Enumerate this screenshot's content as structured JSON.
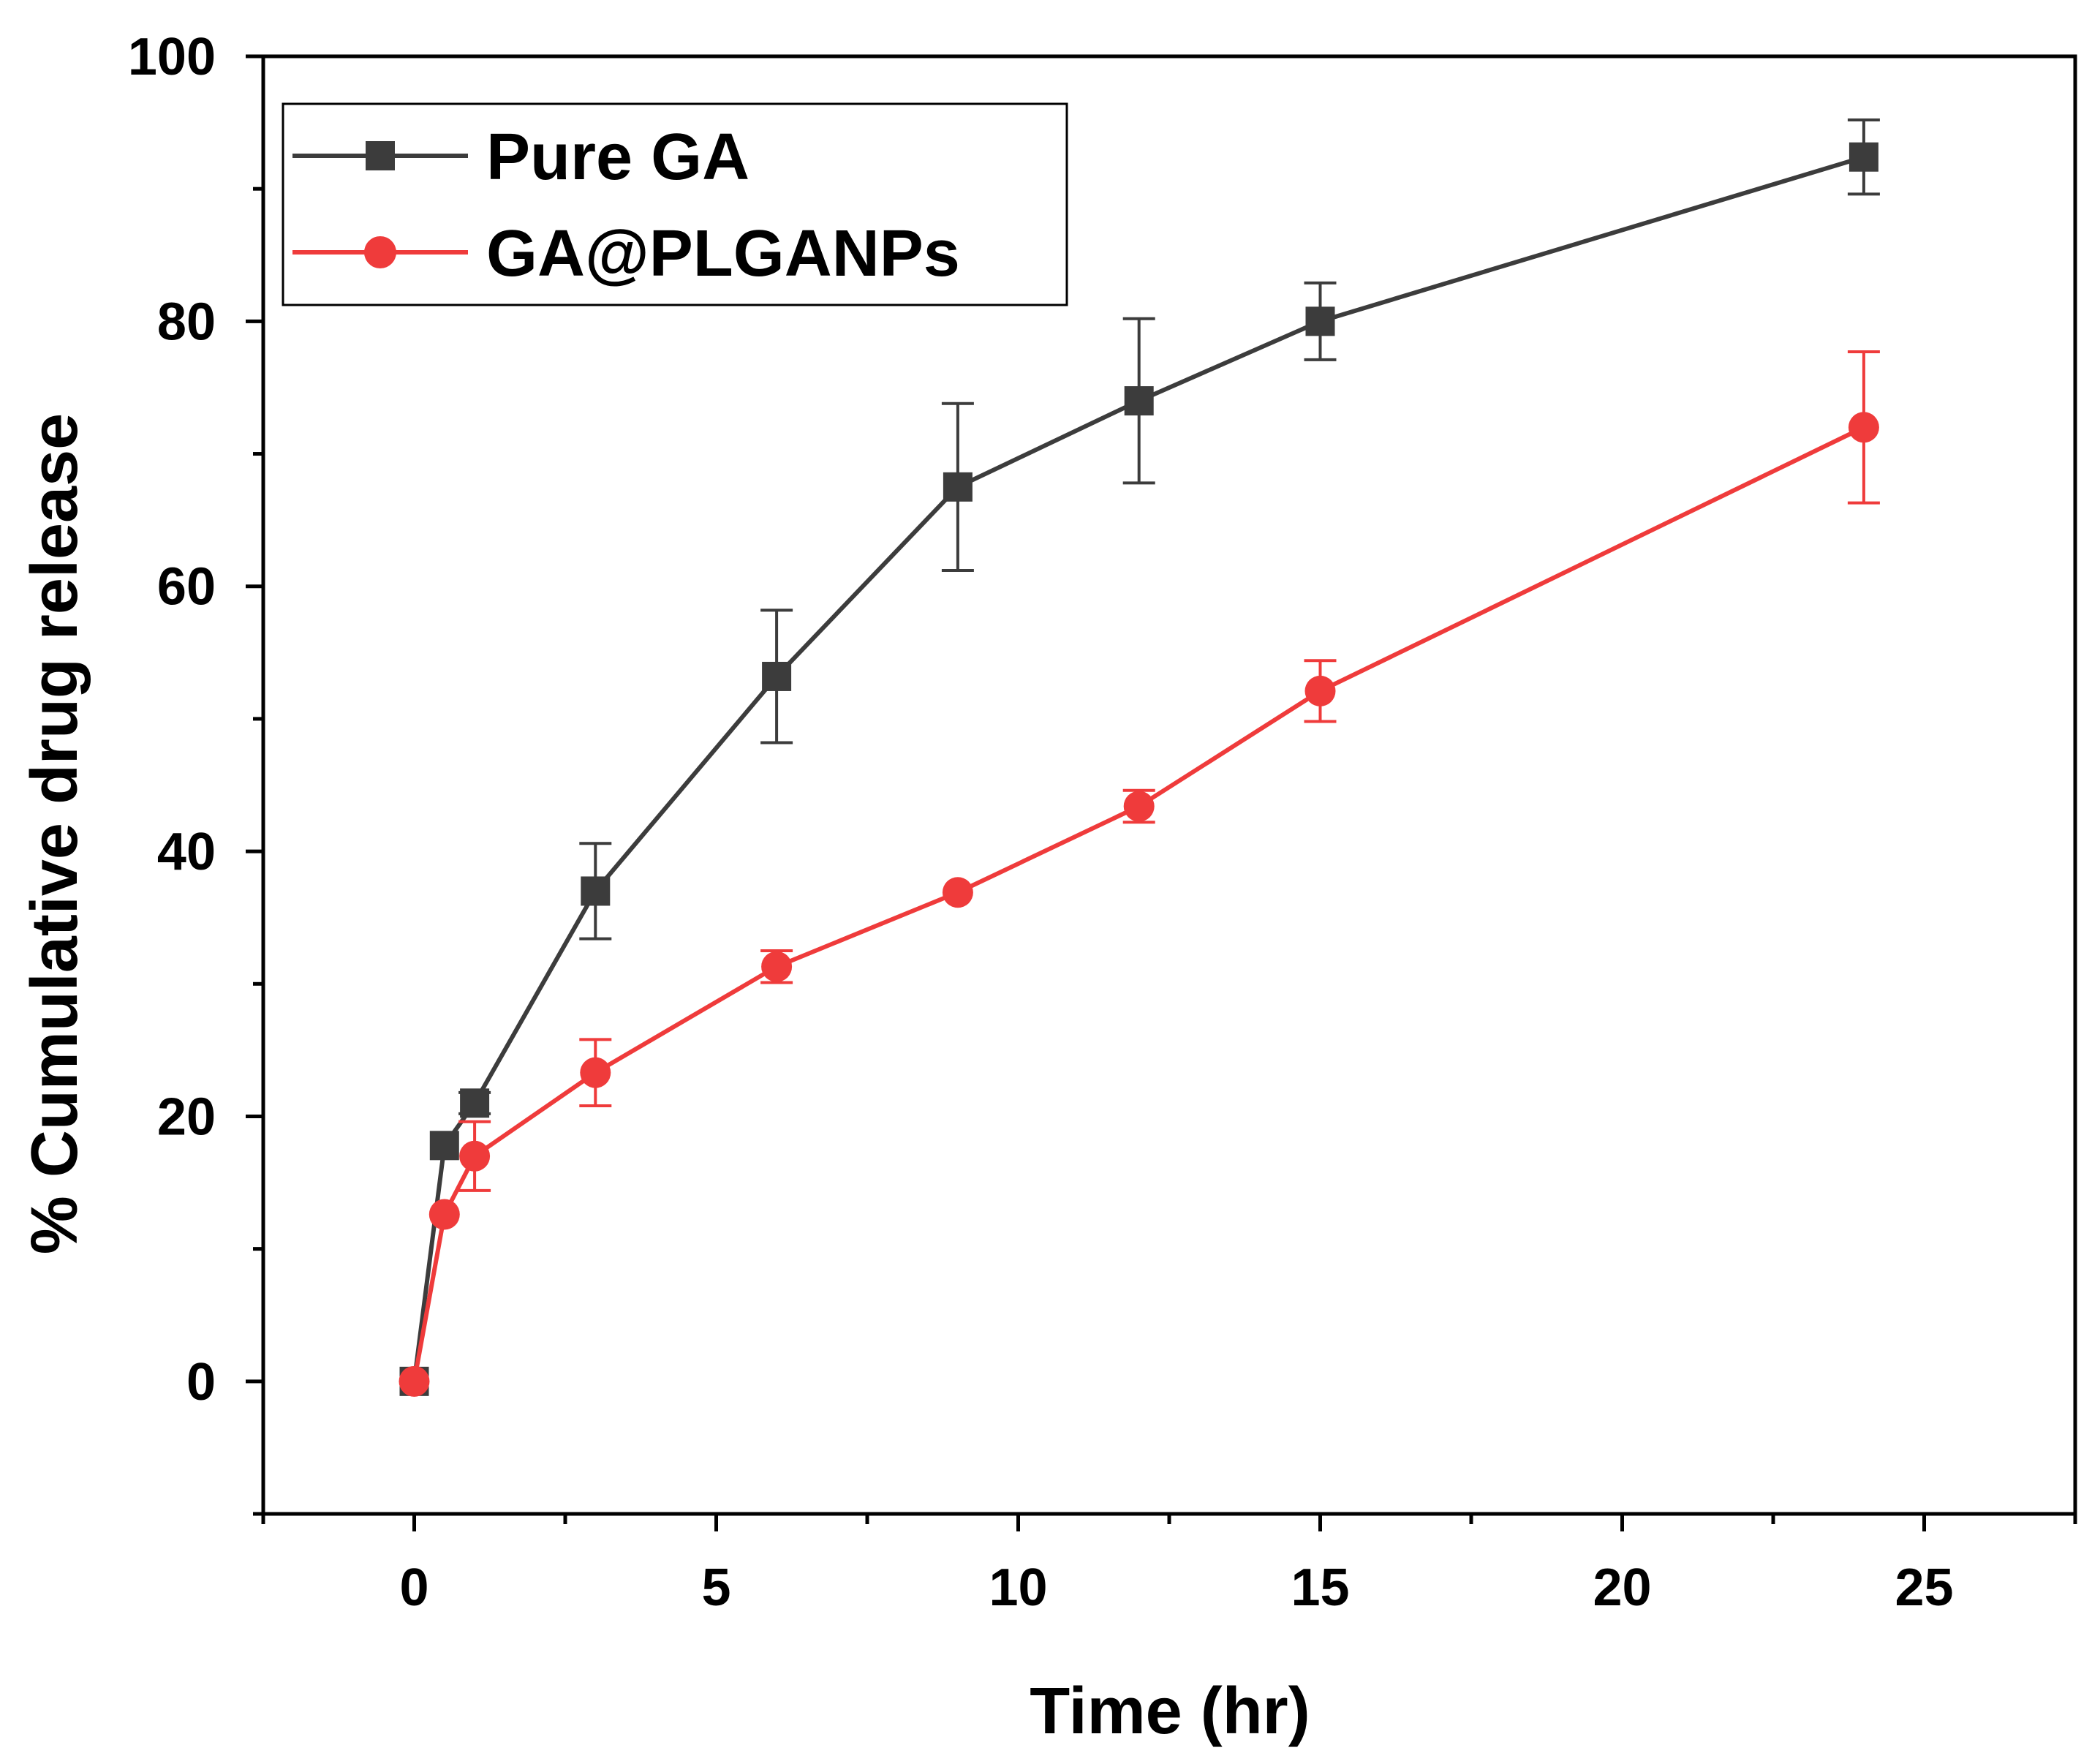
{
  "chart_data": {
    "type": "line",
    "title": "",
    "xlabel": "Time (hr)",
    "ylabel": "% Cumulative drug release",
    "xlim": [
      -2.5,
      27.5
    ],
    "ylim": [
      -10,
      100
    ],
    "xticks": [
      0,
      5,
      10,
      15,
      20,
      25
    ],
    "xtick_labels": [
      "0",
      "5",
      "10",
      "15",
      "20",
      "25"
    ],
    "yticks": [
      0,
      20,
      40,
      60,
      80,
      100
    ],
    "ytick_labels": [
      "0",
      "20",
      "40",
      "60",
      "80",
      "100"
    ],
    "grid": false,
    "legend_position": "top-left",
    "series": [
      {
        "name": "Pure GA",
        "color": "#3c3c3c",
        "marker": "square",
        "x": [
          0,
          0.5,
          1,
          3,
          6,
          9,
          12,
          15,
          24
        ],
        "y": [
          0,
          17.8,
          21,
          37,
          53.2,
          67.5,
          74,
          80,
          92.4
        ],
        "error": [
          0,
          0.5,
          0.8,
          3.6,
          5,
          6.3,
          6.2,
          2.9,
          2.8
        ]
      },
      {
        "name": "GA@PLGANPs",
        "color": "#ef3b3b",
        "marker": "circle",
        "x": [
          0,
          0.5,
          1,
          3,
          6,
          9,
          12,
          15,
          24
        ],
        "y": [
          0,
          12.6,
          17,
          23.3,
          31.3,
          36.9,
          43.4,
          52.1,
          72
        ],
        "error": [
          0,
          0.4,
          2.6,
          2.5,
          1.2,
          0.4,
          1.2,
          2.3,
          5.7
        ]
      }
    ]
  }
}
